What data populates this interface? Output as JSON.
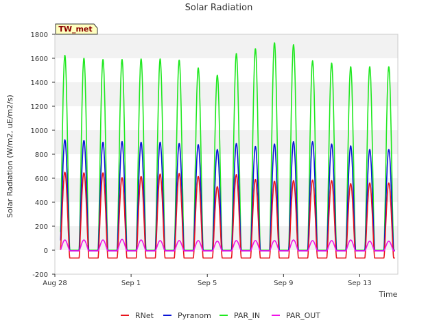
{
  "chart_data": {
    "type": "line",
    "title": "Solar Radiation",
    "xlabel": "Time",
    "ylabel": "Solar Radiation (W/m2, uE/m2/s)",
    "station_label": "TW_met",
    "xlim": [
      "2023-08-28",
      "2023-09-15"
    ],
    "x_ticks": [
      {
        "date": "2023-08-28",
        "label": "Aug 28"
      },
      {
        "date": "2023-09-01",
        "label": "Sep 1"
      },
      {
        "date": "2023-09-05",
        "label": "Sep 5"
      },
      {
        "date": "2023-09-09",
        "label": "Sep 9"
      },
      {
        "date": "2023-09-13",
        "label": "Sep 13"
      }
    ],
    "ylim": [
      -200,
      1800
    ],
    "y_ticks": [
      -200,
      0,
      200,
      400,
      600,
      800,
      1000,
      1200,
      1400,
      1600,
      1800
    ],
    "grid": "horizontal bands",
    "legend_position": "bottom",
    "days": [
      "2023-08-28",
      "2023-08-29",
      "2023-08-30",
      "2023-08-31",
      "2023-09-01",
      "2023-09-02",
      "2023-09-03",
      "2023-09-04",
      "2023-09-05",
      "2023-09-06",
      "2023-09-07",
      "2023-09-08",
      "2023-09-09",
      "2023-09-10",
      "2023-09-11",
      "2023-09-12",
      "2023-09-13",
      "2023-09-14"
    ],
    "series": [
      {
        "name": "RNet",
        "color": "#e8141c",
        "daily_max": [
          650,
          645,
          645,
          605,
          615,
          635,
          640,
          615,
          530,
          630,
          590,
          575,
          580,
          585,
          580,
          555,
          560,
          560
        ],
        "night_value": -65
      },
      {
        "name": "Pyranom",
        "color": "#0a14d6",
        "daily_max": [
          920,
          915,
          900,
          905,
          900,
          900,
          890,
          880,
          840,
          890,
          865,
          885,
          905,
          905,
          885,
          870,
          840,
          840
        ],
        "night_value": -5
      },
      {
        "name": "PAR_IN",
        "color": "#1fe81f",
        "daily_max": [
          1625,
          1600,
          1590,
          1590,
          1595,
          1595,
          1585,
          1520,
          1460,
          1640,
          1680,
          1730,
          1715,
          1580,
          1560,
          1530,
          1530,
          1530
        ],
        "night_value": 0
      },
      {
        "name": "PAR_OUT",
        "color": "#f012e8",
        "daily_max": [
          85,
          85,
          85,
          90,
          85,
          80,
          80,
          80,
          75,
          80,
          80,
          80,
          85,
          80,
          80,
          85,
          75,
          75
        ],
        "night_value": -5
      }
    ]
  }
}
